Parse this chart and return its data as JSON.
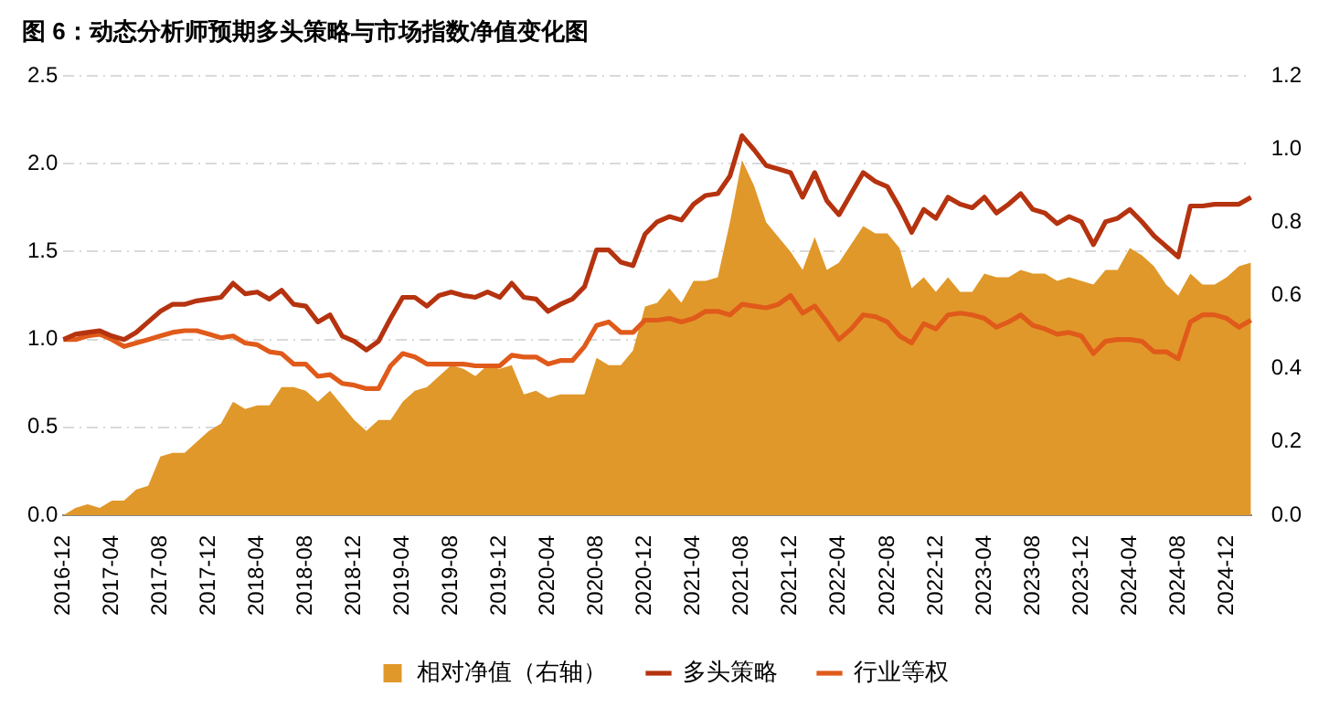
{
  "chart_data": {
    "type": "line",
    "title": "图 6：动态分析师预期多头策略与市场指数净值变化图",
    "categories": [
      "2016-12",
      null,
      null,
      null,
      "2017-04",
      null,
      null,
      null,
      "2017-08",
      null,
      null,
      null,
      "2017-12",
      null,
      null,
      null,
      "2018-04",
      null,
      null,
      null,
      "2018-08",
      null,
      null,
      null,
      "2018-12",
      null,
      null,
      null,
      "2019-04",
      null,
      null,
      null,
      "2019-08",
      null,
      null,
      null,
      "2019-12",
      null,
      null,
      null,
      "2020-04",
      null,
      null,
      null,
      "2020-08",
      null,
      null,
      null,
      "2020-12",
      null,
      null,
      null,
      "2021-04",
      null,
      null,
      null,
      "2021-08",
      null,
      null,
      null,
      "2021-12",
      null,
      null,
      null,
      "2022-04",
      null,
      null,
      null,
      "2022-08",
      null,
      null,
      null,
      "2022-12",
      null,
      null,
      null,
      "2023-04",
      null,
      null,
      null,
      "2023-08",
      null,
      null,
      null,
      "2023-12",
      null,
      null,
      null,
      "2024-04",
      null,
      null,
      null,
      "2024-08",
      null,
      null,
      null,
      "2024-12",
      null,
      null
    ],
    "series": [
      {
        "name": "相对净值（右轴）",
        "type": "area",
        "axis": "y2",
        "color": "#e0982a",
        "values": [
          0.0,
          0.02,
          0.03,
          0.02,
          0.04,
          0.04,
          0.07,
          0.08,
          0.16,
          0.17,
          0.17,
          0.2,
          0.23,
          0.25,
          0.31,
          0.29,
          0.3,
          0.3,
          0.35,
          0.35,
          0.34,
          0.31,
          0.34,
          0.3,
          0.26,
          0.23,
          0.26,
          0.26,
          0.31,
          0.34,
          0.35,
          0.38,
          0.41,
          0.4,
          0.38,
          0.41,
          0.4,
          0.41,
          0.33,
          0.34,
          0.32,
          0.33,
          0.33,
          0.33,
          0.43,
          0.41,
          0.41,
          0.45,
          0.57,
          0.58,
          0.62,
          0.58,
          0.64,
          0.64,
          0.65,
          0.8,
          0.97,
          0.9,
          0.8,
          0.76,
          0.72,
          0.67,
          0.76,
          0.67,
          0.69,
          0.74,
          0.79,
          0.77,
          0.77,
          0.73,
          0.62,
          0.65,
          0.61,
          0.65,
          0.61,
          0.61,
          0.66,
          0.65,
          0.65,
          0.67,
          0.66,
          0.66,
          0.64,
          0.65,
          0.64,
          0.63,
          0.67,
          0.67,
          0.73,
          0.71,
          0.68,
          0.63,
          0.6,
          0.66,
          0.63,
          0.63,
          0.65,
          0.68,
          0.69
        ]
      },
      {
        "name": "多头策略",
        "color": "#b5330f",
        "values": [
          1.0,
          1.03,
          1.04,
          1.05,
          1.02,
          1.0,
          1.04,
          1.1,
          1.16,
          1.2,
          1.2,
          1.22,
          1.23,
          1.24,
          1.32,
          1.26,
          1.27,
          1.23,
          1.28,
          1.2,
          1.19,
          1.1,
          1.14,
          1.02,
          0.99,
          0.94,
          0.99,
          1.12,
          1.24,
          1.24,
          1.19,
          1.25,
          1.27,
          1.25,
          1.24,
          1.27,
          1.24,
          1.32,
          1.24,
          1.23,
          1.16,
          1.2,
          1.23,
          1.3,
          1.51,
          1.51,
          1.44,
          1.42,
          1.6,
          1.67,
          1.7,
          1.68,
          1.77,
          1.82,
          1.83,
          1.93,
          2.16,
          2.08,
          1.99,
          1.97,
          1.95,
          1.81,
          1.95,
          1.79,
          1.71,
          1.83,
          1.95,
          1.9,
          1.87,
          1.75,
          1.61,
          1.74,
          1.69,
          1.81,
          1.77,
          1.75,
          1.81,
          1.72,
          1.77,
          1.83,
          1.74,
          1.72,
          1.66,
          1.7,
          1.67,
          1.54,
          1.67,
          1.69,
          1.74,
          1.67,
          1.59,
          1.53,
          1.47,
          1.76,
          1.76,
          1.77,
          1.77,
          1.77,
          1.81
        ]
      },
      {
        "name": "行业等权",
        "color": "#e05a1a",
        "values": [
          1.0,
          1.0,
          1.02,
          1.03,
          1.0,
          0.96,
          0.98,
          1.0,
          1.02,
          1.04,
          1.05,
          1.05,
          1.03,
          1.01,
          1.02,
          0.98,
          0.97,
          0.93,
          0.92,
          0.86,
          0.86,
          0.79,
          0.8,
          0.75,
          0.74,
          0.72,
          0.72,
          0.85,
          0.92,
          0.9,
          0.86,
          0.86,
          0.86,
          0.86,
          0.85,
          0.85,
          0.85,
          0.91,
          0.9,
          0.9,
          0.86,
          0.88,
          0.88,
          0.96,
          1.08,
          1.1,
          1.04,
          1.04,
          1.11,
          1.11,
          1.12,
          1.1,
          1.12,
          1.16,
          1.16,
          1.14,
          1.2,
          1.19,
          1.18,
          1.2,
          1.25,
          1.15,
          1.19,
          1.1,
          1.0,
          1.06,
          1.14,
          1.13,
          1.1,
          1.02,
          0.98,
          1.09,
          1.06,
          1.14,
          1.15,
          1.14,
          1.12,
          1.07,
          1.1,
          1.14,
          1.08,
          1.06,
          1.03,
          1.04,
          1.02,
          0.92,
          0.99,
          1.0,
          1.0,
          0.99,
          0.93,
          0.93,
          0.89,
          1.1,
          1.14,
          1.14,
          1.12,
          1.07,
          1.11
        ]
      }
    ],
    "ylim": [
      0,
      2.5
    ],
    "yticks": [
      {
        "value": 0,
        "label": "0.0"
      },
      0.5,
      {
        "value": 1,
        "label": "1.0"
      },
      1.5,
      {
        "value": 2,
        "label": "2.0"
      },
      2.5
    ],
    "y2lim": [
      0,
      1.2
    ],
    "y2ticks": [
      {
        "value": 0,
        "label": "0.0"
      },
      0.2,
      0.4,
      0.6,
      0.8,
      {
        "value": 1,
        "label": "1.0"
      },
      1.2
    ],
    "grid": "y",
    "legend": "bottom"
  }
}
